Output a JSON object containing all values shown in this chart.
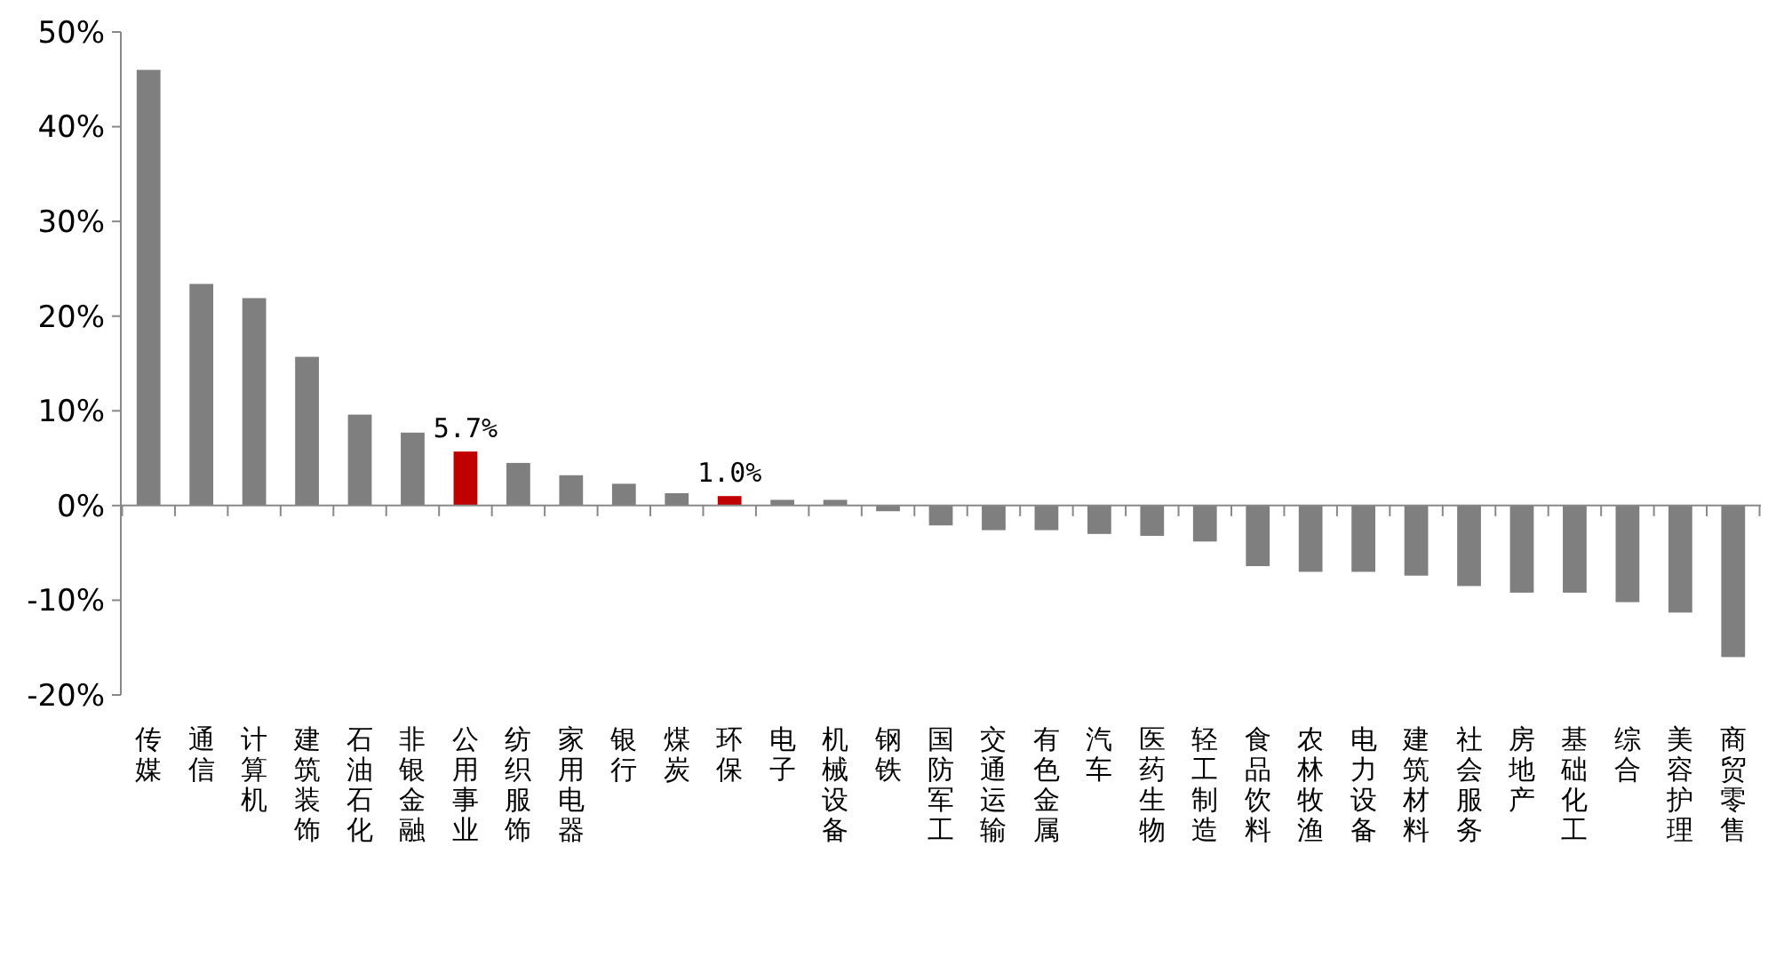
{
  "chart_data": {
    "type": "bar",
    "categories": [
      "传媒",
      "通信",
      "计算机",
      "建筑装饰",
      "石油石化",
      "非银金融",
      "公用事业",
      "纺织服饰",
      "家用电器",
      "银行",
      "煤炭",
      "环保",
      "电子",
      "机械设备",
      "钢铁",
      "国防军工",
      "交通运输",
      "有色金属",
      "汽车",
      "医药生物",
      "轻工制造",
      "食品饮料",
      "农林牧渔",
      "电力设备",
      "建筑材料",
      "社会服务",
      "房地产",
      "基础化工",
      "综合",
      "美容护理",
      "商贸零售"
    ],
    "values": [
      46.0,
      23.4,
      21.9,
      15.7,
      9.6,
      7.7,
      5.7,
      4.5,
      3.2,
      2.3,
      1.3,
      1.0,
      0.6,
      0.6,
      -0.6,
      -2.1,
      -2.6,
      -2.6,
      -3.0,
      -3.2,
      -3.8,
      -6.4,
      -7.0,
      -7.0,
      -7.4,
      -8.5,
      -9.2,
      -9.2,
      -10.2,
      -11.3,
      -16.0
    ],
    "colors": [
      "#7f7f7f",
      "#7f7f7f",
      "#7f7f7f",
      "#7f7f7f",
      "#7f7f7f",
      "#7f7f7f",
      "#c00000",
      "#7f7f7f",
      "#7f7f7f",
      "#7f7f7f",
      "#7f7f7f",
      "#c00000",
      "#7f7f7f",
      "#7f7f7f",
      "#7f7f7f",
      "#7f7f7f",
      "#7f7f7f",
      "#7f7f7f",
      "#7f7f7f",
      "#7f7f7f",
      "#7f7f7f",
      "#7f7f7f",
      "#7f7f7f",
      "#7f7f7f",
      "#7f7f7f",
      "#7f7f7f",
      "#7f7f7f",
      "#7f7f7f",
      "#7f7f7f",
      "#7f7f7f",
      "#7f7f7f"
    ],
    "value_labels": [
      null,
      null,
      null,
      null,
      null,
      null,
      "5.7%",
      null,
      null,
      null,
      null,
      "1.0%",
      null,
      null,
      null,
      null,
      null,
      null,
      null,
      null,
      null,
      null,
      null,
      null,
      null,
      null,
      null,
      null,
      null,
      null,
      null
    ],
    "ylim": [
      -20,
      50
    ],
    "yticks": [
      {
        "value": -20,
        "label": "-20%"
      },
      {
        "value": -10,
        "label": "-10%"
      },
      {
        "value": 0,
        "label": "0%"
      },
      {
        "value": 10,
        "label": "10%"
      },
      {
        "value": 20,
        "label": "20%"
      },
      {
        "value": 30,
        "label": "30%"
      },
      {
        "value": 40,
        "label": "40%"
      },
      {
        "value": 50,
        "label": "50%"
      }
    ]
  }
}
